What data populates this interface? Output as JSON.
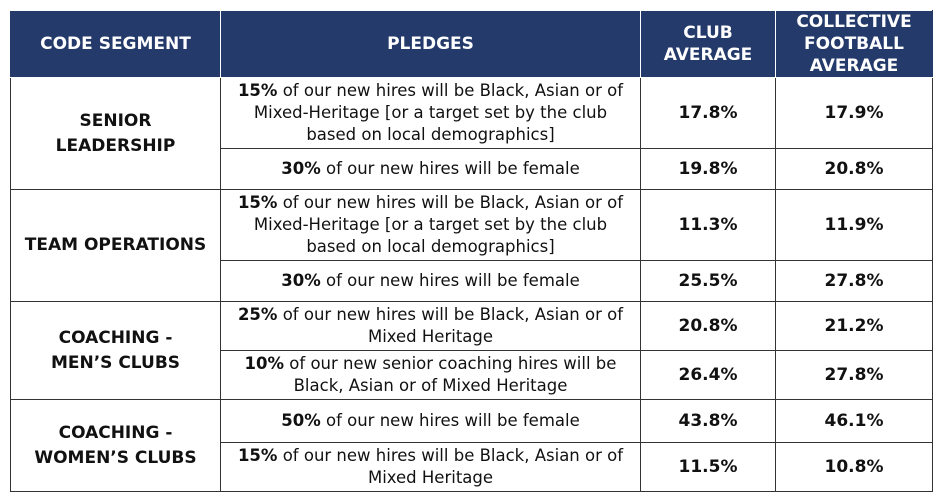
{
  "headers": {
    "segment": "CODE SEGMENT",
    "pledges": "PLEDGES",
    "club_avg_line1": "CLUB",
    "club_avg_line2": "AVERAGE",
    "coll_avg_line1": "COLLECTIVE",
    "coll_avg_line2": "FOOTBALL AVERAGE"
  },
  "segments": [
    {
      "name_line1": "SENIOR LEADERSHIP",
      "name_line2": "",
      "rows": [
        {
          "pledge_pct": "15%",
          "pledge_rest": " of our new hires will be Black, Asian or of Mixed-Heritage [or a target set by the club based on local demographics]",
          "club_average": "17.8%",
          "collective_average": "17.9%"
        },
        {
          "pledge_pct": "30%",
          "pledge_rest": " of our new hires will be female",
          "club_average": "19.8%",
          "collective_average": "20.8%"
        }
      ]
    },
    {
      "name_line1": "TEAM OPERATIONS",
      "name_line2": "",
      "rows": [
        {
          "pledge_pct": "15%",
          "pledge_rest": " of our new hires will be Black, Asian or of Mixed-Heritage [or a target set by the club based on local demographics]",
          "club_average": "11.3%",
          "collective_average": "11.9%"
        },
        {
          "pledge_pct": "30%",
          "pledge_rest": " of our new hires will be female",
          "club_average": "25.5%",
          "collective_average": "27.8%"
        }
      ]
    },
    {
      "name_line1": "COACHING -",
      "name_line2": "MEN’S CLUBS",
      "rows": [
        {
          "pledge_pct": "25%",
          "pledge_rest": " of our new hires will be Black, Asian or of Mixed Heritage",
          "club_average": "20.8%",
          "collective_average": "21.2%"
        },
        {
          "pledge_pct": "10%",
          "pledge_rest": " of our new senior coaching hires will be Black, Asian or of Mixed Heritage",
          "club_average": "26.4%",
          "collective_average": "27.8%"
        }
      ]
    },
    {
      "name_line1": "COACHING -",
      "name_line2": "WOMEN’S CLUBS",
      "rows": [
        {
          "pledge_pct": "50%",
          "pledge_rest": " of our new hires will be female",
          "club_average": "43.8%",
          "collective_average": "46.1%"
        },
        {
          "pledge_pct": "15%",
          "pledge_rest": " of our new hires will be Black, Asian or of Mixed Heritage",
          "club_average": "11.5%",
          "collective_average": "10.8%"
        }
      ]
    }
  ]
}
